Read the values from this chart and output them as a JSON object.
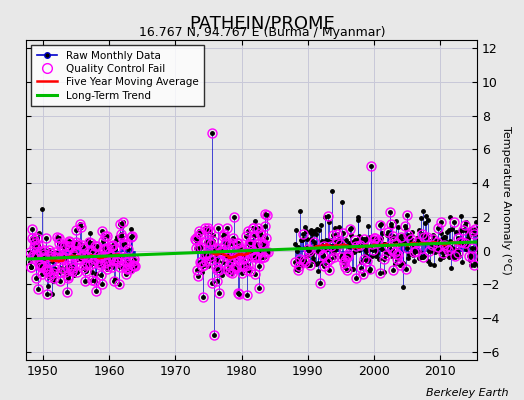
{
  "title": "PATHEIN/PROME",
  "subtitle": "16.767 N, 94.767 E (Burma / Myanmar)",
  "credit": "Berkeley Earth",
  "ylabel": "Temperature Anomaly (°C)",
  "xlim": [
    1947.5,
    2015.5
  ],
  "ylim": [
    -6.5,
    12.5
  ],
  "yticks": [
    -6,
    -4,
    -2,
    0,
    2,
    4,
    6,
    8,
    10,
    12
  ],
  "xticks": [
    1950,
    1960,
    1970,
    1980,
    1990,
    2000,
    2010
  ],
  "bg_color": "#e8e8e8",
  "grid_color": "#c8c8d8",
  "raw_line_color": "#0000cc",
  "raw_dot_color": "#000000",
  "qc_color": "#ff00ff",
  "ma_color": "#ff0000",
  "trend_color": "#00bb00",
  "seed": 12345
}
